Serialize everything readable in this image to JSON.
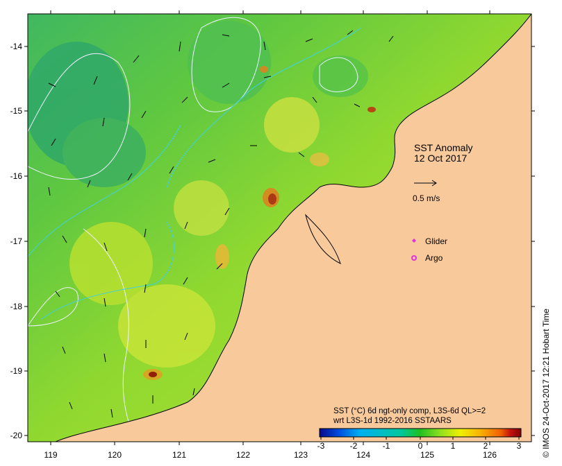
{
  "map": {
    "title_line1": "SST Anomaly",
    "title_line2": "12 Oct 2017",
    "scale_label": "0.5 m/s",
    "legend": {
      "glider_label": "Glider",
      "argo_label": "Argo",
      "glider_color": "#e030e0",
      "argo_color": "#e030e0"
    },
    "caption_line1": "SST (°C) 6d ngt-only comp, L3S-6d QL>=2",
    "caption_line2": "wrt L3S-1d 1992-2016 SSTAARS",
    "credit": "© IMOS 24-Oct-2017 12:21 Hobart Time",
    "land_color": "#f8c99a",
    "x_ticks": [
      "119",
      "120",
      "121",
      "122",
      "123",
      "124",
      "125",
      "126"
    ],
    "y_ticks": [
      "-14",
      "-15",
      "-16",
      "-17",
      "-18",
      "-19",
      "-20"
    ],
    "colorbar": {
      "ticks": [
        "-3",
        "-2",
        "-1",
        "0",
        "1",
        "2",
        "3"
      ],
      "colors": [
        "#0a0a8c",
        "#0050e0",
        "#00b0f0",
        "#00c8a0",
        "#20c020",
        "#90e020",
        "#f0f000",
        "#f8b000",
        "#f06000",
        "#c01010",
        "#800000"
      ]
    }
  }
}
